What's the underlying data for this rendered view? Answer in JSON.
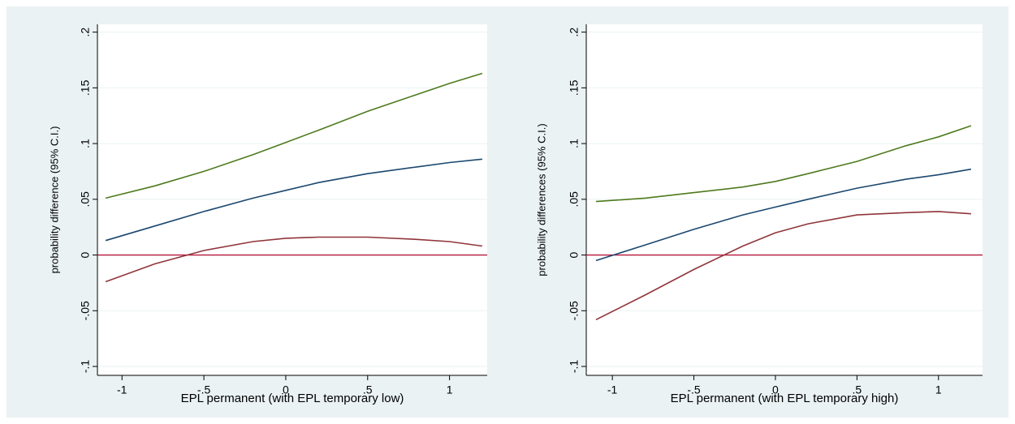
{
  "chart_data": [
    {
      "type": "line",
      "x_label": "EPL permanent (with EPL temporary low)",
      "y_label": "probability difference (95% C.I.)",
      "x": [
        -1.1,
        -0.8,
        -0.5,
        -0.2,
        0,
        0.2,
        0.5,
        0.8,
        1.0,
        1.2
      ],
      "series": [
        {
          "color": "#4e7a1e",
          "values": [
            0.051,
            0.062,
            0.075,
            0.09,
            0.101,
            0.112,
            0.129,
            0.144,
            0.154,
            0.163
          ]
        },
        {
          "color": "#1a476f",
          "values": [
            0.013,
            0.026,
            0.039,
            0.051,
            0.058,
            0.065,
            0.073,
            0.079,
            0.083,
            0.086
          ]
        },
        {
          "color": "#90353b",
          "values": [
            -0.024,
            -0.008,
            0.004,
            0.012,
            0.015,
            0.016,
            0.016,
            0.014,
            0.012,
            0.008
          ]
        }
      ],
      "reference_line": 0,
      "reference_color": "#b5173c",
      "xlim": [
        -1.15,
        1.23
      ],
      "ylim": [
        -0.108,
        0.207
      ],
      "xticks": [
        -1,
        {
          "value": -0.5,
          "label": "-.5"
        },
        0,
        {
          "value": 0.5,
          "label": ".5"
        },
        1
      ],
      "yticks": [
        {
          "value": -0.1,
          "label": "-.1"
        },
        {
          "value": -0.05,
          "label": "-.05"
        },
        0,
        {
          "value": 0.05,
          "label": ".05"
        },
        {
          "value": 0.1,
          "label": ".1"
        },
        {
          "value": 0.15,
          "label": ".15"
        },
        {
          "value": 0.2,
          "label": ".2"
        }
      ],
      "grid": true
    },
    {
      "type": "line",
      "x_label": "EPL permanent (with EPL temporary high)",
      "y_label": "probability differences (95% C.I.)",
      "x": [
        -1.1,
        -0.8,
        -0.5,
        -0.2,
        0,
        0.2,
        0.5,
        0.8,
        1.0,
        1.2
      ],
      "series": [
        {
          "color": "#4e7a1e",
          "values": [
            0.048,
            0.051,
            0.056,
            0.061,
            0.066,
            0.073,
            0.084,
            0.098,
            0.106,
            0.116
          ]
        },
        {
          "color": "#1a476f",
          "values": [
            -0.005,
            0.009,
            0.023,
            0.036,
            0.043,
            0.05,
            0.06,
            0.068,
            0.072,
            0.077
          ]
        },
        {
          "color": "#90353b",
          "values": [
            -0.058,
            -0.036,
            -0.013,
            0.008,
            0.02,
            0.028,
            0.036,
            0.038,
            0.039,
            0.037
          ]
        }
      ],
      "reference_line": 0,
      "reference_color": "#b5173c",
      "xlim": [
        -1.16,
        1.27
      ],
      "ylim": [
        -0.108,
        0.207
      ],
      "xticks": [
        -1,
        {
          "value": -0.5,
          "label": "-.5"
        },
        0,
        {
          "value": 0.5,
          "label": ".5"
        },
        1
      ],
      "yticks": [
        {
          "value": -0.1,
          "label": "-.1"
        },
        {
          "value": -0.05,
          "label": "-.05"
        },
        0,
        {
          "value": 0.05,
          "label": ".05"
        },
        {
          "value": 0.1,
          "label": ".1"
        },
        {
          "value": 0.15,
          "label": ".15"
        },
        {
          "value": 0.2,
          "label": ".2"
        }
      ],
      "grid": true
    }
  ]
}
